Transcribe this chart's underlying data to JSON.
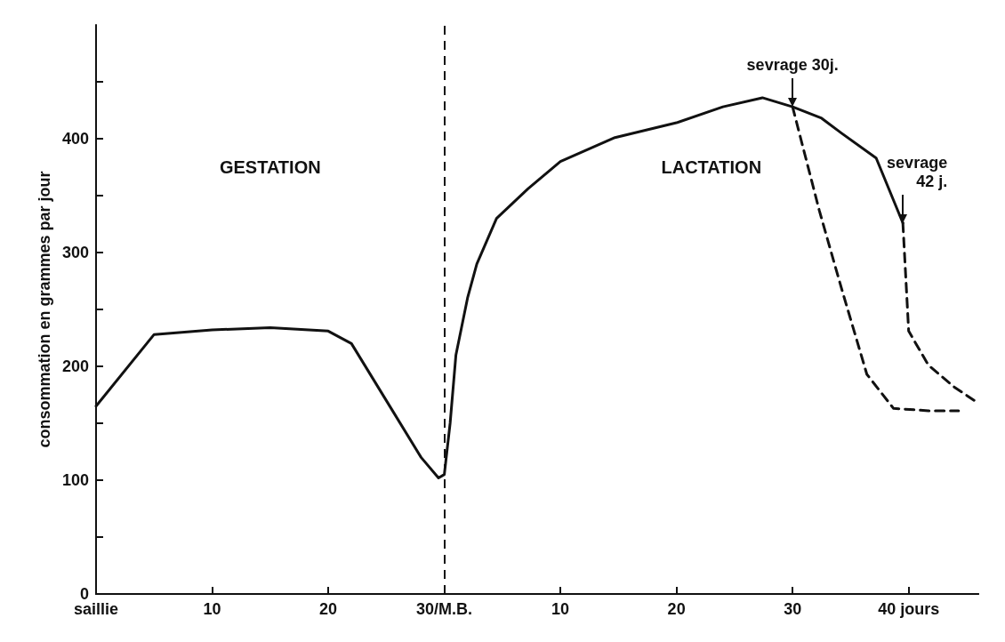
{
  "chart_data": {
    "type": "line",
    "ylabel": "consommation en grammes par jour",
    "xlim": [
      0,
      76
    ],
    "ylim": [
      0,
      500
    ],
    "xticks": [
      {
        "value": 0,
        "label": "saillie"
      },
      10,
      20,
      {
        "value": 30,
        "label": "30/M.B."
      }
    ],
    "x2lim": [
      -30,
      46
    ],
    "x2ticks": [
      10,
      20,
      30,
      {
        "value": 40,
        "label": "40 jours"
      }
    ],
    "yticks": [
      0,
      {
        "value": 50,
        "label": null
      },
      100,
      {
        "value": 150,
        "label": null
      },
      200,
      {
        "value": 250,
        "label": null
      },
      300,
      {
        "value": 350,
        "label": null
      },
      400,
      {
        "value": 450,
        "label": null
      }
    ],
    "grid": false,
    "marker": "none",
    "series": [
      {
        "color": "#111111",
        "line_style": "solid",
        "x": [
          0,
          5,
          10,
          15,
          20,
          22,
          25,
          28,
          29.5,
          30,
          30.5,
          31,
          32,
          32.8,
          34.5,
          37.2,
          40,
          44.7,
          50,
          54,
          57.4,
          60,
          62.5,
          64.2,
          67.2,
          69.5
        ],
        "values": [
          165,
          228,
          232,
          234,
          231,
          220,
          170,
          120,
          102,
          105,
          150,
          210,
          260,
          290,
          330,
          356,
          380,
          401,
          414,
          428,
          436,
          428,
          418,
          405,
          383,
          326
        ]
      },
      {
        "color": "#111111",
        "line_style": "dashed",
        "x": [
          60,
          62.3,
          64.2,
          66.4,
          68.7,
          71.7,
          74.3
        ],
        "values": [
          428,
          337,
          269,
          193,
          163,
          161,
          161
        ]
      },
      {
        "color": "#111111",
        "line_style": "dashed",
        "x": [
          69.5,
          70,
          71.7,
          73.9,
          75.8
        ],
        "values": [
          326,
          231,
          201,
          182,
          169
        ]
      }
    ],
    "ref_lines": [
      {
        "axis": "x",
        "value": 30,
        "color": "#111111",
        "line_style": "dashed"
      }
    ],
    "annotations": [
      "GESTATION",
      "LACTATION",
      {
        "text": "sevrage 30j.",
        "x": 60,
        "y": 428
      },
      {
        "text": "sevrage 42 j.",
        "x": 69.5,
        "y": 326
      }
    ]
  }
}
